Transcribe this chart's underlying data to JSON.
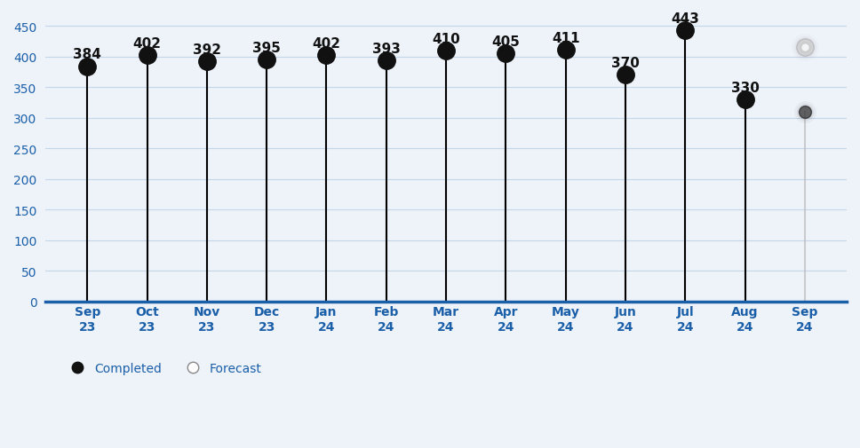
{
  "categories": [
    "Sep\n23",
    "Oct\n23",
    "Nov\n23",
    "Dec\n23",
    "Jan\n24",
    "Feb\n24",
    "Mar\n24",
    "Apr\n24",
    "May\n24",
    "Jun\n24",
    "Jul\n24",
    "Aug\n24",
    "Sep\n24"
  ],
  "values": [
    384,
    402,
    392,
    395,
    402,
    393,
    410,
    405,
    411,
    370,
    443,
    330,
    310
  ],
  "forecast_upper": 415,
  "forecast_lower": 310,
  "types": [
    "completed",
    "completed",
    "completed",
    "completed",
    "completed",
    "completed",
    "completed",
    "completed",
    "completed",
    "completed",
    "completed",
    "completed",
    "forecast"
  ],
  "ylim": [
    0,
    460
  ],
  "yticks": [
    0,
    50,
    100,
    150,
    200,
    250,
    300,
    350,
    400,
    450
  ],
  "background_color": "#eef3fa",
  "stem_color": "#000000",
  "completed_marker_color": "#111111",
  "axis_line_color": "#1a5fa8",
  "tick_label_color": "#1a5fa8",
  "annotation_color": "#111111",
  "annotation_fontsize": 11,
  "tick_fontsize": 10,
  "grid_color": "#c5d5e8",
  "marker_size": 14,
  "stem_linewidth": 1.5,
  "legend_fontsize": 10,
  "label_fontsize": 10
}
